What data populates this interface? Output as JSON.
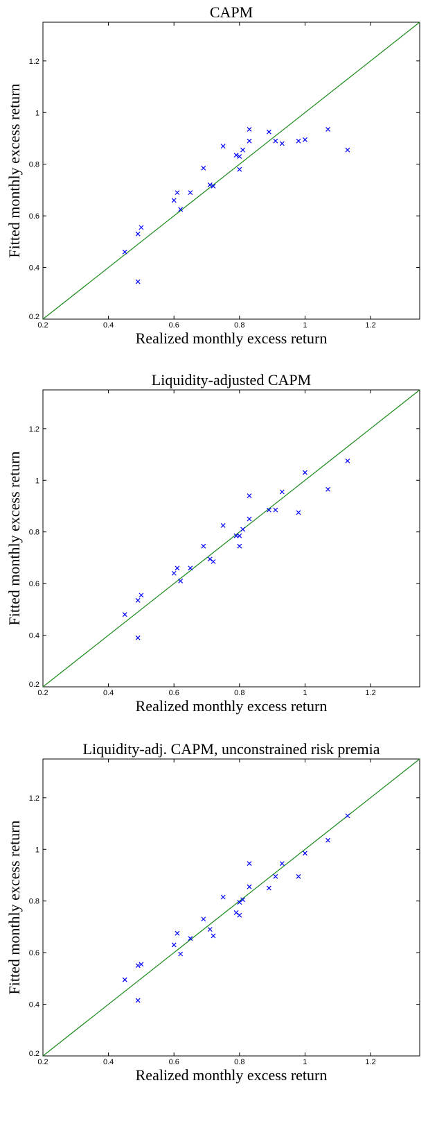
{
  "colors": {
    "marker": "#0000ff",
    "reference_line": "#1a8a1a",
    "axes": "#000000",
    "background": "#ffffff"
  },
  "chart_data": [
    {
      "type": "scatter",
      "title": "CAPM",
      "xlabel": "Realized monthly excess return",
      "ylabel": "Fitted monthly excess return",
      "xlim": [
        0.2,
        1.35
      ],
      "ylim": [
        0.2,
        1.35
      ],
      "xticks": [
        0.2,
        0.4,
        0.6,
        0.8,
        1,
        1.2
      ],
      "yticks": [
        0.2,
        0.4,
        0.6,
        0.8,
        1,
        1.2
      ],
      "xtick_labels": [
        "0.2",
        "0.4",
        "0.6",
        "0.8",
        "1",
        "1.2"
      ],
      "ytick_labels": [
        "0.2",
        "0.4",
        "0.6",
        "0.8",
        "1",
        "1.2"
      ],
      "marker": "x",
      "reference_line": "45-degree line y = x",
      "grid": false,
      "x": [
        0.45,
        0.49,
        0.49,
        0.5,
        0.6,
        0.61,
        0.62,
        0.65,
        0.69,
        0.71,
        0.72,
        0.75,
        0.79,
        0.8,
        0.8,
        0.81,
        0.83,
        0.83,
        0.89,
        0.91,
        0.93,
        0.98,
        1.0,
        1.07,
        1.13
      ],
      "y": [
        0.46,
        0.345,
        0.53,
        0.555,
        0.66,
        0.69,
        0.625,
        0.69,
        0.785,
        0.72,
        0.715,
        0.87,
        0.835,
        0.83,
        0.78,
        0.855,
        0.935,
        0.89,
        0.925,
        0.89,
        0.88,
        0.89,
        0.895,
        0.935,
        0.855
      ]
    },
    {
      "type": "scatter",
      "title": "Liquidity-adjusted CAPM",
      "xlabel": "Realized monthly excess return",
      "ylabel": "Fitted monthly excess return",
      "xlim": [
        0.2,
        1.35
      ],
      "ylim": [
        0.2,
        1.35
      ],
      "xticks": [
        0.2,
        0.4,
        0.6,
        0.8,
        1,
        1.2
      ],
      "yticks": [
        0.2,
        0.4,
        0.6,
        0.8,
        1,
        1.2
      ],
      "xtick_labels": [
        "0.2",
        "0.4",
        "0.6",
        "0.8",
        "1",
        "1.2"
      ],
      "ytick_labels": [
        "0.2",
        "0.4",
        "0.6",
        "0.8",
        "1",
        "1.2"
      ],
      "marker": "x",
      "reference_line": "45-degree line y = x",
      "grid": false,
      "x": [
        0.45,
        0.49,
        0.49,
        0.5,
        0.6,
        0.61,
        0.62,
        0.65,
        0.69,
        0.71,
        0.72,
        0.75,
        0.79,
        0.8,
        0.8,
        0.81,
        0.83,
        0.83,
        0.89,
        0.91,
        0.93,
        0.98,
        1.0,
        1.07,
        1.13
      ],
      "y": [
        0.48,
        0.39,
        0.535,
        0.555,
        0.64,
        0.66,
        0.61,
        0.66,
        0.745,
        0.695,
        0.685,
        0.825,
        0.785,
        0.785,
        0.745,
        0.81,
        0.94,
        0.85,
        0.885,
        0.885,
        0.955,
        0.875,
        1.03,
        0.965,
        1.075
      ]
    },
    {
      "type": "scatter",
      "title": "Liquidity-adj. CAPM, unconstrained risk premia",
      "xlabel": "Realized monthly excess return",
      "ylabel": "Fitted monthly excess return",
      "xlim": [
        0.2,
        1.35
      ],
      "ylim": [
        0.2,
        1.35
      ],
      "xticks": [
        0.2,
        0.4,
        0.6,
        0.8,
        1,
        1.2
      ],
      "yticks": [
        0.2,
        0.4,
        0.6,
        0.8,
        1,
        1.2
      ],
      "xtick_labels": [
        "0.2",
        "0.4",
        "0.6",
        "0.8",
        "1",
        "1.2"
      ],
      "ytick_labels": [
        "0.2",
        "0.4",
        "0.6",
        "0.8",
        "1",
        "1.2"
      ],
      "marker": "x",
      "reference_line": "45-degree line y = x",
      "grid": false,
      "x": [
        0.45,
        0.49,
        0.49,
        0.5,
        0.6,
        0.61,
        0.62,
        0.65,
        0.69,
        0.71,
        0.72,
        0.75,
        0.79,
        0.8,
        0.8,
        0.81,
        0.83,
        0.83,
        0.89,
        0.91,
        0.93,
        0.98,
        1.0,
        1.07,
        1.13
      ],
      "y": [
        0.495,
        0.415,
        0.55,
        0.555,
        0.63,
        0.675,
        0.595,
        0.655,
        0.73,
        0.69,
        0.665,
        0.815,
        0.755,
        0.795,
        0.745,
        0.805,
        0.945,
        0.855,
        0.85,
        0.895,
        0.945,
        0.895,
        0.985,
        1.035,
        1.13
      ]
    }
  ]
}
